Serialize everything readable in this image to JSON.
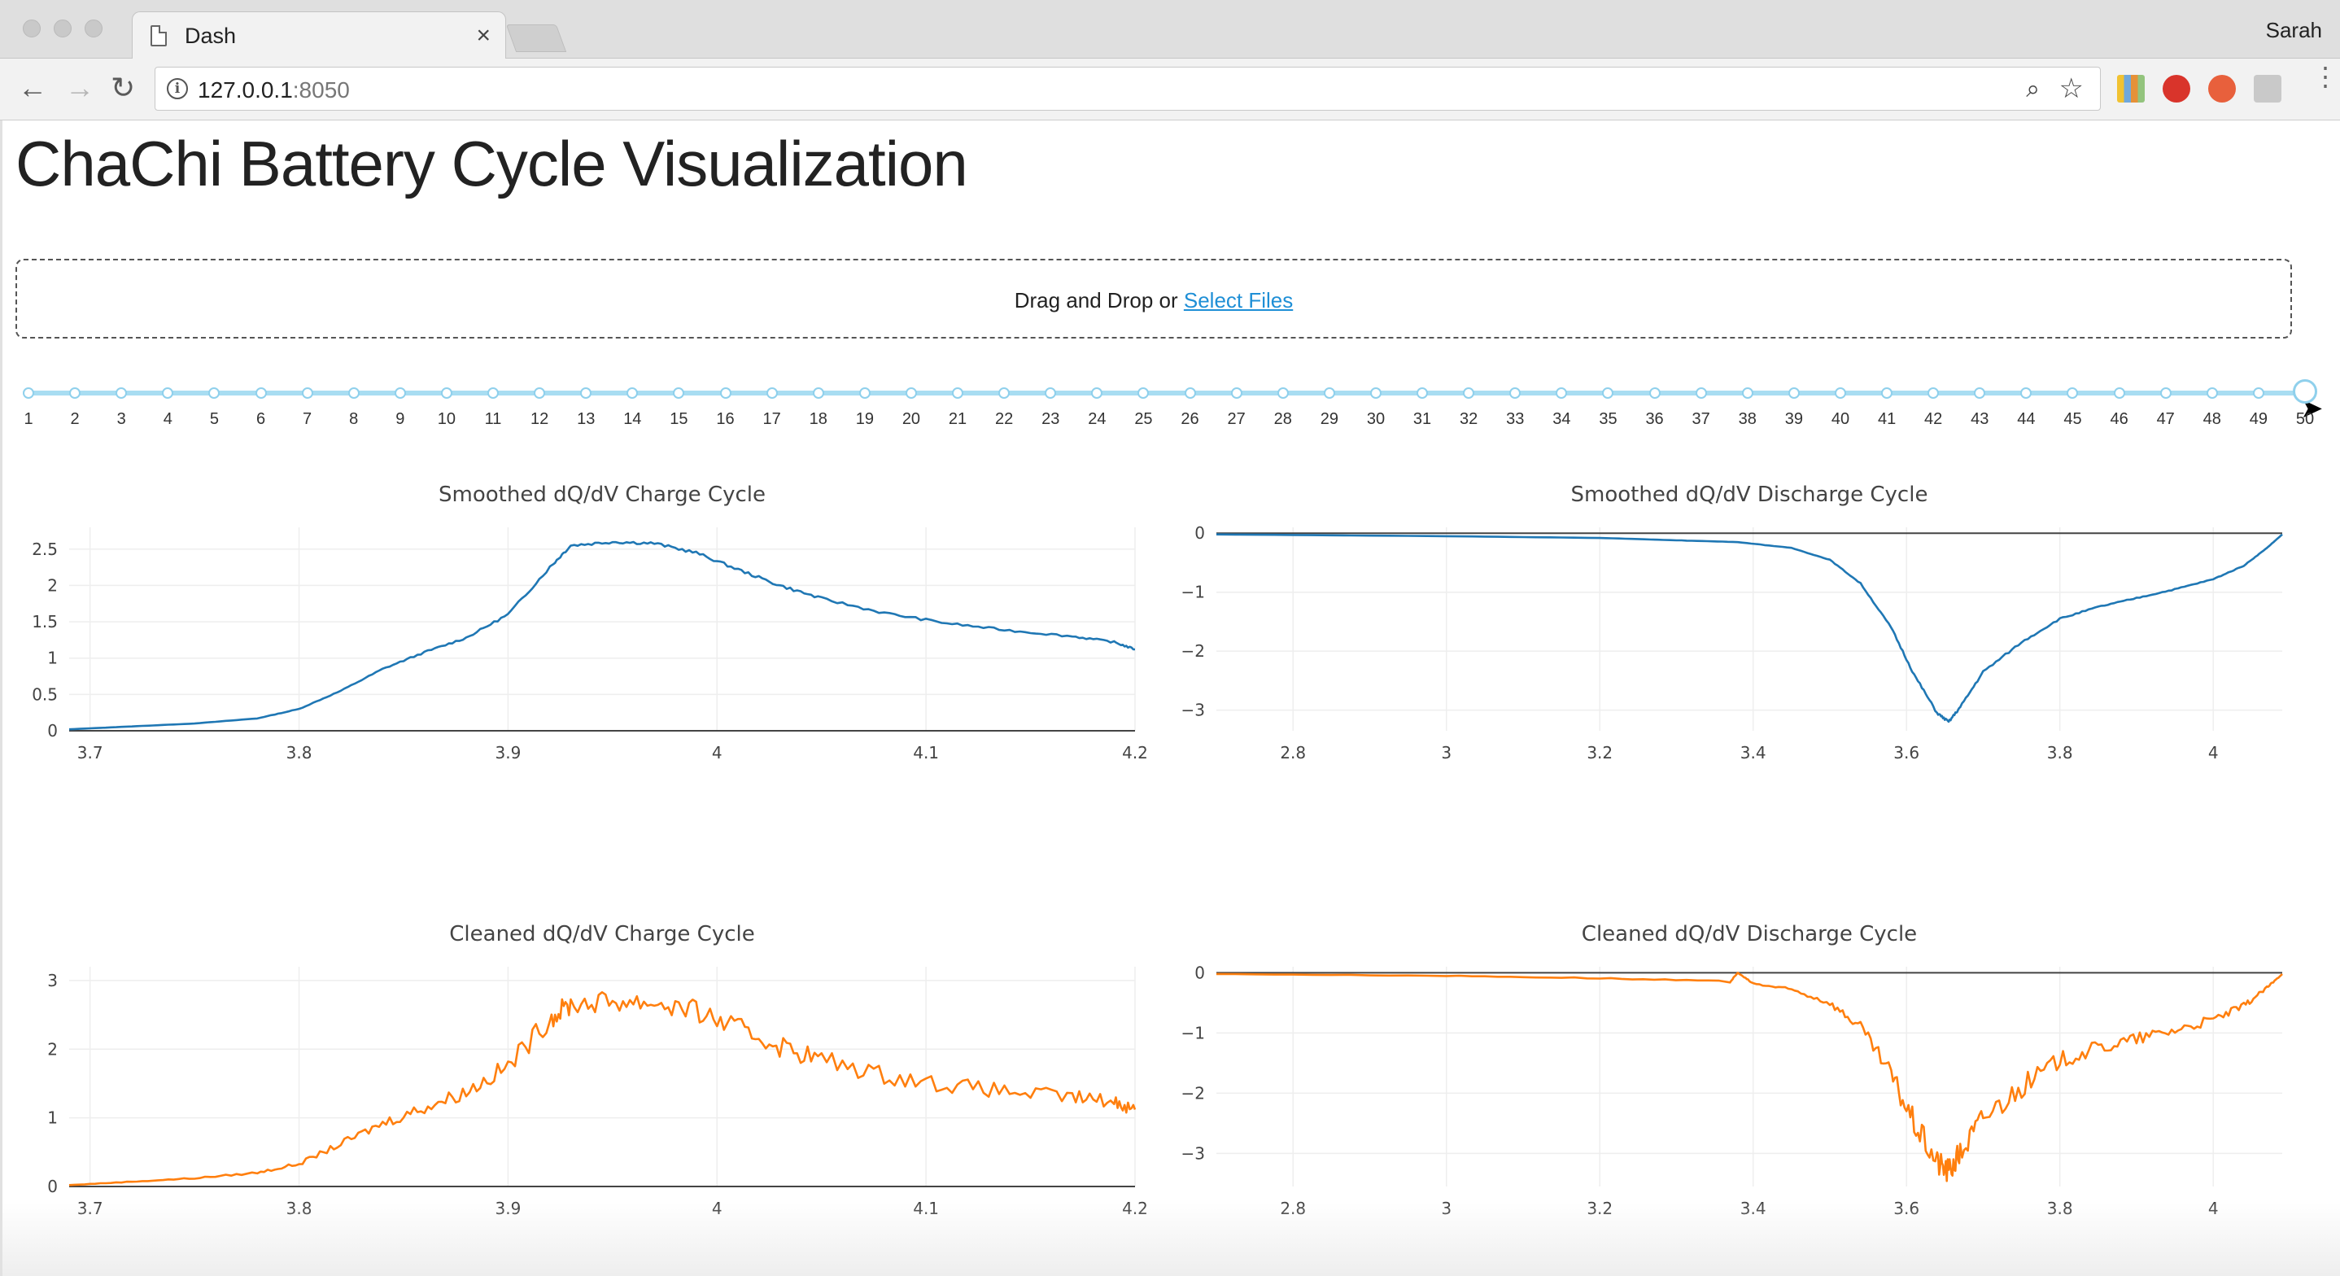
{
  "browser": {
    "tab_title": "Dash",
    "profile_name": "Sarah",
    "url_host": "127.0.0.1",
    "url_port": ":8050",
    "icons": [
      "back-icon",
      "forward-icon",
      "reload-icon",
      "info-icon",
      "zoom-icon",
      "star-icon",
      "menu-icon"
    ]
  },
  "page": {
    "title": "ChaChi Battery Cycle Visualization",
    "upload": {
      "prefix": "Drag and Drop or ",
      "link": "Select Files"
    },
    "slider": {
      "min": 1,
      "max": 50,
      "value": 50,
      "marks": [
        "1",
        "2",
        "3",
        "4",
        "5",
        "6",
        "7",
        "8",
        "9",
        "10",
        "11",
        "12",
        "13",
        "14",
        "15",
        "16",
        "17",
        "18",
        "19",
        "20",
        "21",
        "22",
        "23",
        "24",
        "25",
        "26",
        "27",
        "28",
        "29",
        "30",
        "31",
        "32",
        "33",
        "34",
        "35",
        "36",
        "37",
        "38",
        "39",
        "40",
        "41",
        "42",
        "43",
        "44",
        "45",
        "46",
        "47",
        "48",
        "49",
        "50"
      ]
    }
  },
  "colors": {
    "blue": "#1f77b4",
    "orange": "#ff7f0e",
    "slider": "#8fd0ec"
  },
  "chart_data": [
    {
      "id": "smoothed-charge",
      "type": "line",
      "title": "Smoothed dQ/dV Charge Cycle",
      "color": "#1f77b4",
      "noise": 0,
      "xlim": [
        3.69,
        4.2
      ],
      "ylim": [
        0,
        2.8
      ],
      "xticks": [
        3.7,
        3.8,
        3.9,
        4,
        4.1,
        4.2
      ],
      "xtick_labels": [
        "3.7",
        "3.8",
        "3.9",
        "4",
        "4.1",
        "4.2"
      ],
      "yticks": [
        0,
        0.5,
        1,
        1.5,
        2,
        2.5
      ],
      "ytick_labels": [
        "0",
        "0.5",
        "1",
        "1.5",
        "2",
        "2.5"
      ],
      "x": [
        3.69,
        3.72,
        3.75,
        3.78,
        3.8,
        3.82,
        3.84,
        3.86,
        3.88,
        3.9,
        3.92,
        3.93,
        3.95,
        3.97,
        3.99,
        4.01,
        4.03,
        4.05,
        4.08,
        4.11,
        4.14,
        4.17,
        4.19,
        4.2
      ],
      "y": [
        0.02,
        0.06,
        0.1,
        0.17,
        0.3,
        0.55,
        0.85,
        1.08,
        1.28,
        1.6,
        2.25,
        2.55,
        2.6,
        2.58,
        2.45,
        2.22,
        2.0,
        1.82,
        1.62,
        1.48,
        1.38,
        1.3,
        1.22,
        1.12
      ]
    },
    {
      "id": "smoothed-discharge",
      "type": "line",
      "title": "Smoothed dQ/dV Discharge Cycle",
      "color": "#1f77b4",
      "noise": 0,
      "xlim": [
        2.7,
        4.09
      ],
      "ylim": [
        -3.35,
        0.1
      ],
      "xticks": [
        2.8,
        3,
        3.2,
        3.4,
        3.6,
        3.8,
        4
      ],
      "xtick_labels": [
        "2.8",
        "3",
        "3.2",
        "3.4",
        "3.6",
        "3.8",
        "4"
      ],
      "yticks": [
        0,
        -1,
        -2,
        -3
      ],
      "ytick_labels": [
        "0",
        "−1",
        "−2",
        "−3"
      ],
      "x": [
        2.7,
        3.0,
        3.2,
        3.3,
        3.38,
        3.45,
        3.5,
        3.54,
        3.58,
        3.61,
        3.64,
        3.655,
        3.67,
        3.7,
        3.75,
        3.8,
        3.85,
        3.9,
        3.95,
        4.0,
        4.04,
        4.07,
        4.09
      ],
      "y": [
        -0.02,
        -0.05,
        -0.08,
        -0.12,
        -0.15,
        -0.25,
        -0.45,
        -0.85,
        -1.6,
        -2.4,
        -3.05,
        -3.2,
        -2.95,
        -2.35,
        -1.85,
        -1.45,
        -1.25,
        -1.1,
        -0.95,
        -0.78,
        -0.55,
        -0.25,
        -0.02
      ]
    },
    {
      "id": "cleaned-charge",
      "type": "line",
      "title": "Cleaned dQ/dV Charge Cycle",
      "color": "#ff7f0e",
      "noise": 0.16,
      "xlim": [
        3.69,
        4.2
      ],
      "ylim": [
        0,
        3.2
      ],
      "xticks": [
        3.7,
        3.8,
        3.9,
        4,
        4.1,
        4.2
      ],
      "xtick_labels": [
        "3.7",
        "3.8",
        "3.9",
        "4",
        "4.1",
        "4.2"
      ],
      "yticks": [
        0,
        1,
        2,
        3
      ],
      "ytick_labels": [
        "0",
        "1",
        "2",
        "3"
      ],
      "x": [
        3.69,
        3.72,
        3.75,
        3.78,
        3.8,
        3.82,
        3.84,
        3.86,
        3.88,
        3.9,
        3.92,
        3.93,
        3.95,
        3.97,
        3.99,
        4.01,
        4.03,
        4.05,
        4.08,
        4.11,
        4.14,
        4.17,
        4.19,
        4.2
      ],
      "y": [
        0.02,
        0.07,
        0.12,
        0.2,
        0.33,
        0.62,
        0.92,
        1.15,
        1.38,
        1.75,
        2.45,
        2.65,
        2.7,
        2.68,
        2.55,
        2.3,
        2.05,
        1.85,
        1.62,
        1.48,
        1.38,
        1.3,
        1.24,
        1.12
      ]
    },
    {
      "id": "cleaned-discharge",
      "type": "line",
      "title": "Cleaned dQ/dV Discharge Cycle",
      "color": "#ff7f0e",
      "noise": 0.22,
      "xlim": [
        2.7,
        4.09
      ],
      "ylim": [
        -3.55,
        0.1
      ],
      "xticks": [
        2.8,
        3,
        3.2,
        3.4,
        3.6,
        3.8,
        4
      ],
      "xtick_labels": [
        "2.8",
        "3",
        "3.2",
        "3.4",
        "3.6",
        "3.8",
        "4"
      ],
      "yticks": [
        0,
        -1,
        -2,
        -3
      ],
      "ytick_labels": [
        "0",
        "−1",
        "−2",
        "−3"
      ],
      "x": [
        2.7,
        3.0,
        3.2,
        3.37,
        3.38,
        3.4,
        3.45,
        3.5,
        3.54,
        3.58,
        3.61,
        3.64,
        3.655,
        3.67,
        3.7,
        3.75,
        3.8,
        3.85,
        3.9,
        3.95,
        4.0,
        4.04,
        4.07,
        4.09
      ],
      "y": [
        -0.02,
        -0.05,
        -0.09,
        -0.15,
        0.0,
        -0.18,
        -0.28,
        -0.5,
        -0.9,
        -1.7,
        -2.5,
        -3.15,
        -3.3,
        -3.0,
        -2.4,
        -1.9,
        -1.45,
        -1.25,
        -1.1,
        -0.95,
        -0.78,
        -0.55,
        -0.25,
        -0.02
      ]
    }
  ]
}
